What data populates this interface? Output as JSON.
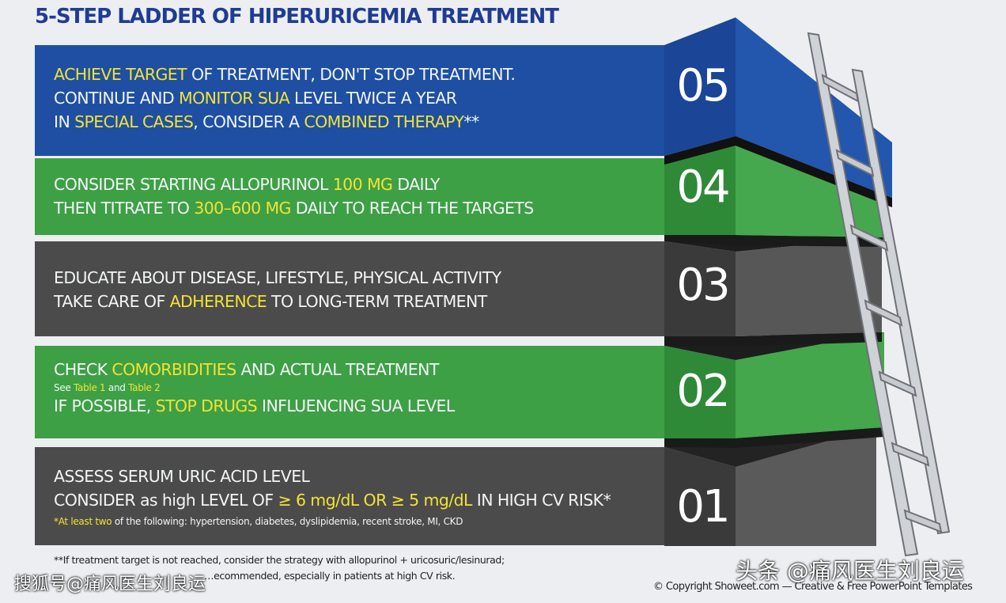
{
  "title": "5-STEP LADDER OF HIPERURICEMIA TREATMENT",
  "colors": {
    "blue": "#1e4fa3",
    "green": "#39a046",
    "dark": "#4a4a4a",
    "highlight": "#f3e234",
    "title": "#1f3c94"
  },
  "steps": [
    {
      "number": "05",
      "color": "blue",
      "lines": [
        [
          "ACHIEVE TARGET",
          " OF TREATMENT, DON'T STOP TREATMENT."
        ],
        [
          "CONTINUE AND ",
          "MONITOR SUA",
          " LEVEL TWICE A YEAR"
        ],
        [
          "IN ",
          "SPECIAL CASES",
          ", CONSIDER A ",
          "COMBINED THERAPY",
          "**"
        ]
      ]
    },
    {
      "number": "04",
      "color": "green",
      "lines": [
        [
          "CONSIDER STARTING ALLOPURINOL ",
          "100 MG",
          " DAILY"
        ],
        [
          "THEN TITRATE TO ",
          "300–600 MG",
          " DAILY TO REACH THE TARGETS"
        ]
      ]
    },
    {
      "number": "03",
      "color": "dark",
      "lines": [
        [
          "EDUCATE ABOUT DISEASE, LIFESTYLE, PHYSICAL ACTIVITY"
        ],
        [
          "TAKE CARE OF ",
          "ADHERENCE",
          " TO LONG-TERM TREATMENT"
        ]
      ]
    },
    {
      "number": "02",
      "color": "green",
      "lines": [
        [
          "CHECK ",
          "COMORBIDITIES",
          " AND ACTUAL TREATMENT"
        ],
        [
          "IF POSSIBLE, ",
          "STOP DRUGS",
          " INFLUENCING SUA LEVEL"
        ]
      ],
      "note": [
        "See ",
        "Table 1",
        " and ",
        "Table 2"
      ]
    },
    {
      "number": "01",
      "color": "dark",
      "lines": [
        [
          "ASSESS SERUM URIC ACID LEVEL"
        ],
        [
          "CONSIDER as high LEVEL OF ",
          "≥ 6 mg/dL OR ≥ 5 mg/dL",
          " IN HIGH CV RISK*"
        ]
      ],
      "note": [
        "*At least two",
        " of the following: hypertension, diabetes, dyslipidemia, recent stroke, MI, CKD"
      ]
    }
  ],
  "footnote": {
    "line1": "**If treatment target is not reached, consider the strategy with allopurinol + uricosuric/lesinurad;",
    "line2": "…ecommended, especially in patients at high CV risk."
  },
  "watermark_left": "搜狐号@痛风医生刘良运",
  "watermark_right": "头条 @痛风医生刘良运",
  "copyright": "© Copyright Showeet.com — Creative & Free PowerPoint Templates"
}
